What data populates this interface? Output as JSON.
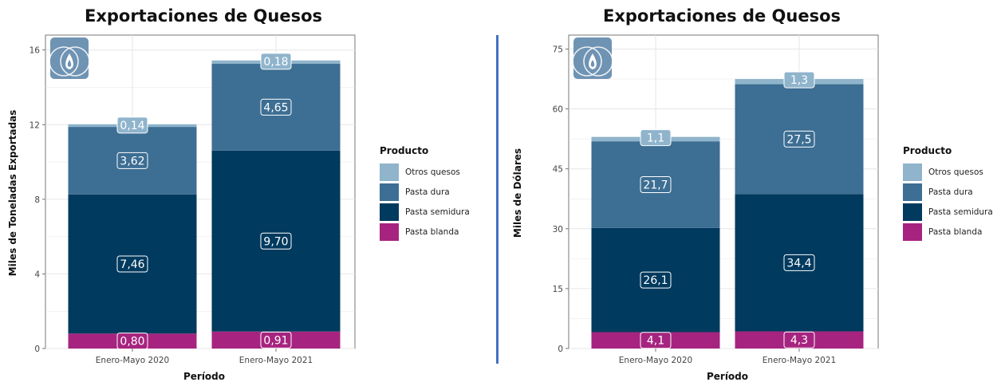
{
  "colors": {
    "otros_quesos": "#8fb4cc",
    "pasta_dura": "#3d6e93",
    "pasta_semidura": "#003a5e",
    "pasta_blanda": "#a6247f",
    "grid": "#e6e6e6",
    "divider": "#4472c4"
  },
  "legend": {
    "title": "Producto",
    "items": [
      "Otros quesos",
      "Pasta dura",
      "Pasta semidura",
      "Pasta blanda"
    ]
  },
  "chart_data": [
    {
      "type": "bar",
      "stacked": true,
      "title": "Exportaciones de Quesos",
      "xlabel": "Período",
      "ylabel": "Miles de Toneladas Exportadas",
      "ylim": [
        0,
        16.8
      ],
      "yticks": [
        0,
        4,
        8,
        12,
        16
      ],
      "ytick_labels": [
        "0",
        "4",
        "8",
        "12",
        "16"
      ],
      "grid": true,
      "legend_position": "right",
      "categories": [
        "Enero-Mayo 2020",
        "Enero-Mayo 2021"
      ],
      "series": [
        {
          "name": "Pasta blanda",
          "values": [
            0.8,
            0.91
          ],
          "labels": [
            "0,80",
            "0,91"
          ]
        },
        {
          "name": "Pasta semidura",
          "values": [
            7.46,
            9.7
          ],
          "labels": [
            "7,46",
            "9,70"
          ]
        },
        {
          "name": "Pasta dura",
          "values": [
            3.62,
            4.65
          ],
          "labels": [
            "3,62",
            "4,65"
          ]
        },
        {
          "name": "Otros quesos",
          "values": [
            0.14,
            0.18
          ],
          "labels": [
            "0,14",
            "0,18"
          ]
        }
      ]
    },
    {
      "type": "bar",
      "stacked": true,
      "title": "Exportaciones de Quesos",
      "xlabel": "Período",
      "ylabel": "Miles de Dólares",
      "ylim": [
        0,
        78.5
      ],
      "yticks": [
        0,
        15,
        30,
        45,
        60,
        75
      ],
      "ytick_labels": [
        "0",
        "15",
        "30",
        "45",
        "60",
        "75"
      ],
      "grid": true,
      "legend_position": "right",
      "categories": [
        "Enero-Mayo 2020",
        "Enero-Mayo 2021"
      ],
      "series": [
        {
          "name": "Pasta blanda",
          "values": [
            4.1,
            4.3
          ],
          "labels": [
            "4,1",
            "4,3"
          ]
        },
        {
          "name": "Pasta semidura",
          "values": [
            26.1,
            34.4
          ],
          "labels": [
            "26,1",
            "34,4"
          ]
        },
        {
          "name": "Pasta dura",
          "values": [
            21.7,
            27.5
          ],
          "labels": [
            "21,7",
            "27,5"
          ]
        },
        {
          "name": "Otros quesos",
          "values": [
            1.1,
            1.3
          ],
          "labels": [
            "1,1",
            "1,3"
          ]
        }
      ]
    }
  ]
}
